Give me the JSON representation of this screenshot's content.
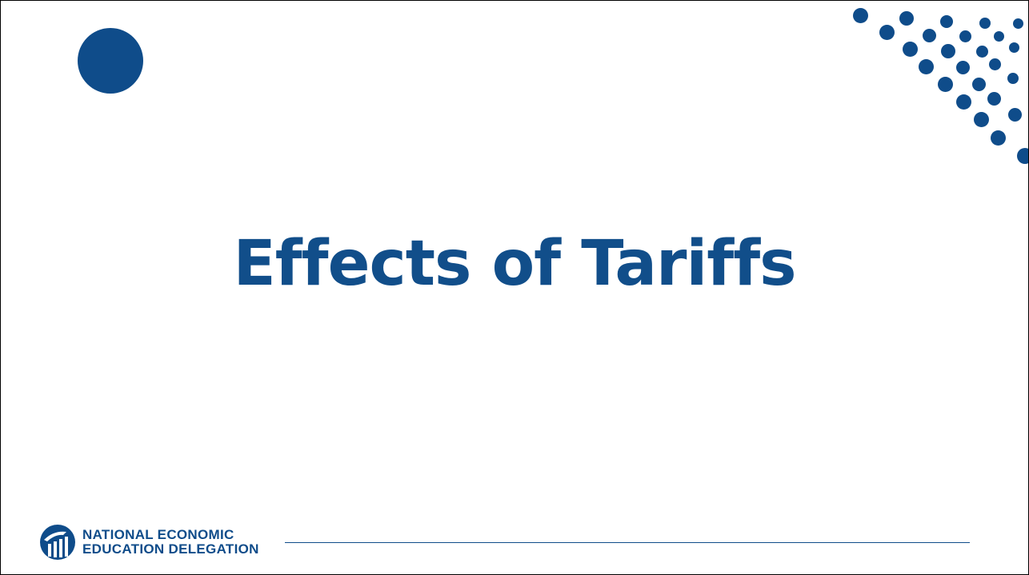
{
  "slide": {
    "title": "Effects of Tariffs"
  },
  "footer": {
    "logo_line1": "NATIONAL ECONOMIC",
    "logo_line2": "EDUCATION DELEGATION"
  },
  "colors": {
    "brand_blue": "#0f4c8a",
    "background": "#ffffff"
  },
  "icons": [
    "big-circle-decoration",
    "dot-pattern-decoration",
    "need-logo-icon"
  ]
}
